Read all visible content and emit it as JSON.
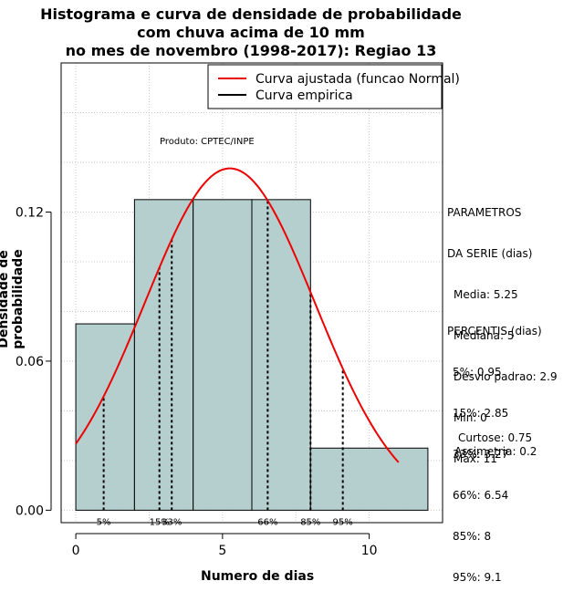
{
  "title": {
    "line1": "Histograma e curva de densidade de probabilidade",
    "line2": "com chuva acima de 10 mm",
    "line3": "no mes de novembro (1998-2017): Regiao 13"
  },
  "product_label": "Produto: CPTEC/INPE",
  "colors": {
    "bar_fill": "#b5cfce",
    "fitted_curve": "#ee0000",
    "empirical_curve": "#000000",
    "grid": "#c8c8c8"
  },
  "legend": {
    "position": "top-right",
    "items": [
      {
        "label": "Curva ajustada (funcao Normal)",
        "color": "#ee0000"
      },
      {
        "label": "Curva empirica",
        "color": "#000000"
      }
    ]
  },
  "parametros": {
    "header1": "PARAMETROS",
    "header2": "DA SERIE (dias)",
    "media": "Media: 5.25",
    "mediana": "Mediana: 5",
    "desvio": "Desvio padrao: 2.9",
    "min": "Min: 0",
    "max": "Max: 11"
  },
  "percentis": {
    "header": "PERCENTIS (dias)",
    "p5": "5%: 0.95",
    "p15": "15%: 2.85",
    "p33": "33%: 3.27",
    "p66": "66%: 6.54",
    "p85": "85%: 8",
    "p95": "95%: 9.1"
  },
  "moments": {
    "curtose": "Curtose: 0.75",
    "assimetria": "Assimetria: 0.2"
  },
  "chart_data": {
    "type": "bar",
    "title": "Histograma e curva de densidade de probabilidade com chuva acima de 10 mm no mes de novembro (1998-2017): Regiao 13",
    "xlabel": "Numero de dias",
    "ylabel": "Densidade de probabilidade",
    "xlim": [
      -0.5,
      12.5
    ],
    "ylim": [
      -0.005,
      0.18
    ],
    "x_ticks": [
      0,
      5,
      10
    ],
    "x_tick_labels": [
      "0",
      "5",
      "10"
    ],
    "y_ticks": [
      0.0,
      0.06,
      0.12
    ],
    "y_tick_labels": [
      "0.00",
      "0.06",
      "0.12"
    ],
    "grid": true,
    "histogram": {
      "bin_edges": [
        0,
        2,
        4,
        6,
        8,
        12
      ],
      "density": [
        0.075,
        0.125,
        0.125,
        0.125,
        0.025
      ]
    },
    "fitted_normal": {
      "mean": 5.25,
      "sd": 2.9,
      "x_range": [
        0,
        11
      ]
    },
    "percentiles": [
      {
        "label": "5%",
        "x": 0.95
      },
      {
        "label": "15%",
        "x": 2.85
      },
      {
        "label": "33%",
        "x": 3.27
      },
      {
        "label": "66%",
        "x": 6.54
      },
      {
        "label": "85%",
        "x": 8
      },
      {
        "label": "95%",
        "x": 9.1
      }
    ]
  }
}
